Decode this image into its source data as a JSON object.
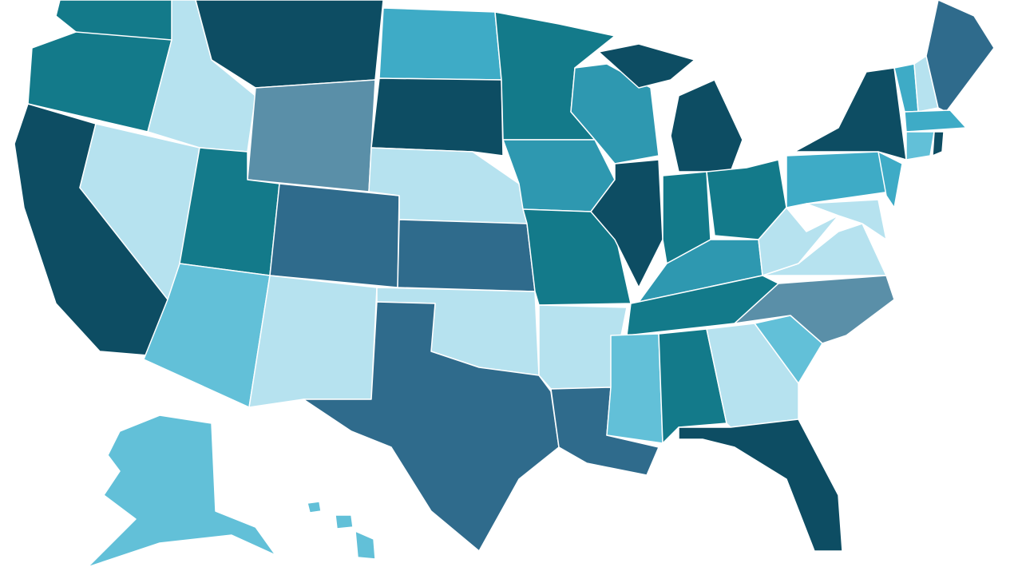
{
  "map": {
    "regions": [
      {
        "color": "#137a8a"
      },
      {
        "color": "#137a8a"
      },
      {
        "color": "#0d4d63"
      },
      {
        "color": "#b6e2ef"
      },
      {
        "color": "#b6e2ef"
      },
      {
        "color": "#0d4d63"
      },
      {
        "color": "#5a8fa8"
      },
      {
        "color": "#137a8a"
      },
      {
        "color": "#62c0d8"
      },
      {
        "color": "#2f6b8c"
      },
      {
        "color": "#b6e2ef"
      },
      {
        "color": "#3eabc6"
      },
      {
        "color": "#0d4d63"
      },
      {
        "color": "#b6e2ef"
      },
      {
        "color": "#2f6b8c"
      },
      {
        "color": "#b6e2ef"
      },
      {
        "color": "#2f6b8c"
      },
      {
        "color": "#137a8a"
      },
      {
        "color": "#2e98b0"
      },
      {
        "color": "#137a8a"
      },
      {
        "color": "#b6e2ef"
      },
      {
        "color": "#2f6b8c"
      },
      {
        "color": "#2e98b0"
      },
      {
        "color": "#0d4d63"
      },
      {
        "color": "#0d4d63"
      },
      {
        "color": "#0d4d63"
      },
      {
        "color": "#137a8a"
      },
      {
        "color": "#137a8a"
      },
      {
        "color": "#2e98b0"
      },
      {
        "color": "#137a8a"
      },
      {
        "color": "#62c0d8"
      },
      {
        "color": "#137a8a"
      },
      {
        "color": "#b6e2ef"
      },
      {
        "color": "#0d4d63"
      },
      {
        "color": "#62c0d8"
      },
      {
        "color": "#5a8fa8"
      },
      {
        "color": "#b6e2ef"
      },
      {
        "color": "#b6e2ef"
      },
      {
        "color": "#3eabc6"
      },
      {
        "color": "#0d4d63"
      },
      {
        "color": "#3eabc6"
      },
      {
        "color": "#b6e2ef"
      },
      {
        "color": "#3eabc6"
      },
      {
        "color": "#b6e2ef"
      },
      {
        "color": "#2f6b8c"
      },
      {
        "color": "#3eabc6"
      },
      {
        "color": "#62c0d8"
      },
      {
        "color": "#0d4d63"
      },
      {
        "color": "#62c0d8"
      },
      {
        "color": "#62c0d8"
      },
      {
        "color": "#62c0d8"
      },
      {
        "color": "#62c0d8"
      }
    ]
  }
}
